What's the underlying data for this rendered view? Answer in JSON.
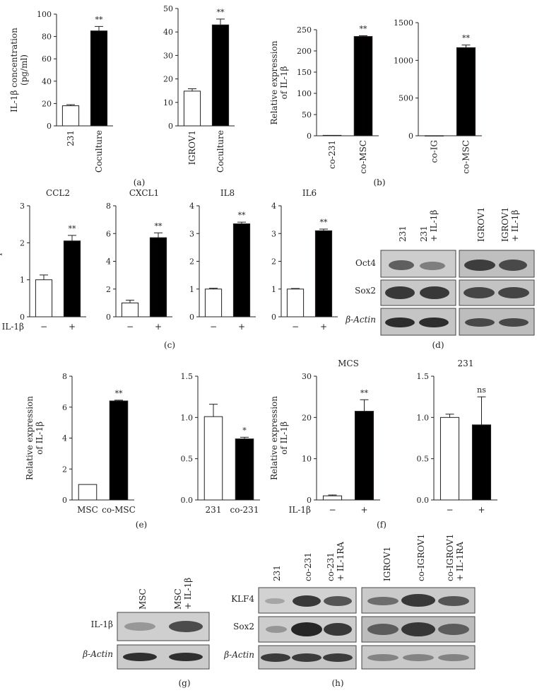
{
  "chart_data": [
    {
      "id": "a1",
      "type": "bar",
      "categories": [
        "231",
        "Coculture"
      ],
      "values": [
        18,
        85
      ],
      "errors": [
        1,
        4
      ],
      "ylim": [
        0,
        100
      ],
      "yticks": [
        0,
        20,
        40,
        60,
        80,
        100
      ],
      "ylabel": [
        "IL-1β concentration",
        "(pg/ml)"
      ],
      "annotations": [
        "",
        "**"
      ],
      "colors": [
        "#ffffff",
        "#000000"
      ]
    },
    {
      "id": "a2",
      "type": "bar",
      "categories": [
        "IGROV1",
        "Coculture"
      ],
      "values": [
        14.8,
        43
      ],
      "errors": [
        1,
        2.5
      ],
      "ylim": [
        0,
        50
      ],
      "yticks": [
        0,
        10,
        20,
        30,
        40,
        50
      ],
      "ylabel": [],
      "annotations": [
        "",
        "**"
      ],
      "colors": [
        "#ffffff",
        "#000000"
      ]
    },
    {
      "id": "b1",
      "type": "bar",
      "categories": [
        "co-231",
        "co-MSC"
      ],
      "values": [
        1,
        234
      ],
      "errors": [
        0,
        2
      ],
      "ylim": [
        0,
        250
      ],
      "yticks": [
        0,
        50,
        100,
        150,
        200,
        250
      ],
      "ylabel": [
        "Relative expression",
        "of IL-1β"
      ],
      "annotations": [
        "",
        "**"
      ],
      "colors": [
        "#ffffff",
        "#000000"
      ]
    },
    {
      "id": "b2",
      "type": "bar",
      "categories": [
        "co-IG",
        "co-MSC"
      ],
      "values": [
        1,
        1168
      ],
      "errors": [
        0,
        35
      ],
      "ylim": [
        0,
        1500
      ],
      "yticks": [
        0,
        500,
        1000,
        1500
      ],
      "ylabel": [],
      "annotations": [
        "",
        "**"
      ],
      "colors": [
        "#ffffff",
        "#000000"
      ]
    },
    {
      "id": "c1",
      "type": "bar",
      "title": "CCL2",
      "categories": [
        "−",
        "+"
      ],
      "values": [
        1,
        2.05
      ],
      "errors": [
        0.13,
        0.15
      ],
      "ylim": [
        0,
        3
      ],
      "yticks": [
        0,
        1,
        2,
        3
      ],
      "ylabel": [
        "Relative expression"
      ],
      "annotations": [
        "",
        "**"
      ],
      "colors": [
        "#ffffff",
        "#000000"
      ],
      "rowlabel": "IL-1β"
    },
    {
      "id": "c2",
      "type": "bar",
      "title": "CXCL1",
      "categories": [
        "−",
        "+"
      ],
      "values": [
        1,
        5.7
      ],
      "errors": [
        0.2,
        0.35
      ],
      "ylim": [
        0,
        8
      ],
      "yticks": [
        0,
        2,
        4,
        6,
        8
      ],
      "ylabel": [],
      "annotations": [
        "",
        "**"
      ],
      "colors": [
        "#ffffff",
        "#000000"
      ]
    },
    {
      "id": "c3",
      "type": "bar",
      "title": "IL8",
      "categories": [
        "−",
        "+"
      ],
      "values": [
        1,
        3.35
      ],
      "errors": [
        0.03,
        0.06
      ],
      "ylim": [
        0,
        4
      ],
      "yticks": [
        0,
        1,
        2,
        3,
        4
      ],
      "ylabel": [],
      "annotations": [
        "",
        "**"
      ],
      "colors": [
        "#ffffff",
        "#000000"
      ]
    },
    {
      "id": "c4",
      "type": "bar",
      "title": "IL6",
      "categories": [
        "−",
        "+"
      ],
      "values": [
        1,
        3.1
      ],
      "errors": [
        0.02,
        0.06
      ],
      "ylim": [
        0,
        4
      ],
      "yticks": [
        0,
        1,
        2,
        3,
        4
      ],
      "ylabel": [],
      "annotations": [
        "",
        "**"
      ],
      "colors": [
        "#ffffff",
        "#000000"
      ]
    },
    {
      "id": "e1",
      "type": "bar",
      "categories": [
        "MSC",
        "co-MSC"
      ],
      "values": [
        1,
        6.4
      ],
      "errors": [
        0,
        0.05
      ],
      "ylim": [
        0,
        8
      ],
      "yticks": [
        0,
        2,
        4,
        6,
        8
      ],
      "ylabel": [
        "Relative expression",
        "of IL-1β"
      ],
      "annotations": [
        "",
        "**"
      ],
      "colors": [
        "#ffffff",
        "#000000"
      ]
    },
    {
      "id": "e2",
      "type": "bar",
      "categories": [
        "231",
        "co-231"
      ],
      "values": [
        1.01,
        0.74
      ],
      "errors": [
        0.15,
        0.02
      ],
      "ylim": [
        0,
        1.5
      ],
      "yticks": [
        "0.0",
        "0.5",
        "1.0",
        "1.5"
      ],
      "ylabel": [],
      "annotations": [
        "",
        "*"
      ],
      "colors": [
        "#ffffff",
        "#000000"
      ]
    },
    {
      "id": "f1",
      "type": "bar",
      "title": "MCS",
      "categories": [
        "−",
        "+"
      ],
      "values": [
        1,
        21.5
      ],
      "errors": [
        0.2,
        2.8
      ],
      "ylim": [
        0,
        30
      ],
      "yticks": [
        0,
        10,
        20,
        30
      ],
      "ylabel": [
        "Relative expression",
        "of IL-1β"
      ],
      "annotations": [
        "",
        "**"
      ],
      "colors": [
        "#ffffff",
        "#000000"
      ],
      "rowlabel": "IL-1β"
    },
    {
      "id": "f2",
      "type": "bar",
      "title": "231",
      "categories": [
        "−",
        "+"
      ],
      "values": [
        1,
        0.91
      ],
      "errors": [
        0.04,
        0.34
      ],
      "ylim": [
        0,
        1.5
      ],
      "yticks": [
        "0.0",
        "0.5",
        "1.0",
        "1.5"
      ],
      "ylabel": [],
      "annotations": [
        "",
        "ns"
      ],
      "colors": [
        "#ffffff",
        "#000000"
      ]
    }
  ],
  "panel_labels": {
    "a": "(a)",
    "b": "(b)",
    "c": "(c)",
    "d": "(d)",
    "e": "(e)",
    "f": "(f)",
    "g": "(g)",
    "h": "(h)"
  },
  "blots": {
    "d": {
      "lanes_left": [
        "231",
        "231",
        "+ IL-1β"
      ],
      "lanes_right": [
        "IGROV1",
        "IGROV1",
        "+ IL-1β"
      ],
      "rows": [
        "Oct4",
        "Sox2",
        "β-Actin"
      ]
    },
    "g": {
      "lanes": [
        "MSC",
        "MSC",
        "+ IL-1β"
      ],
      "rows": [
        "IL-1β",
        "β-Actin"
      ]
    },
    "h": {
      "lanes_left": [
        "231",
        "co-231",
        "co-231",
        "+ IL-1RA"
      ],
      "lanes_right": [
        "IGROV1",
        "co-IGROV1",
        "co-IGROV1",
        "+ IL-1RA"
      ],
      "rows": [
        "KLF4",
        "Sox2",
        "β-Actin"
      ]
    }
  }
}
